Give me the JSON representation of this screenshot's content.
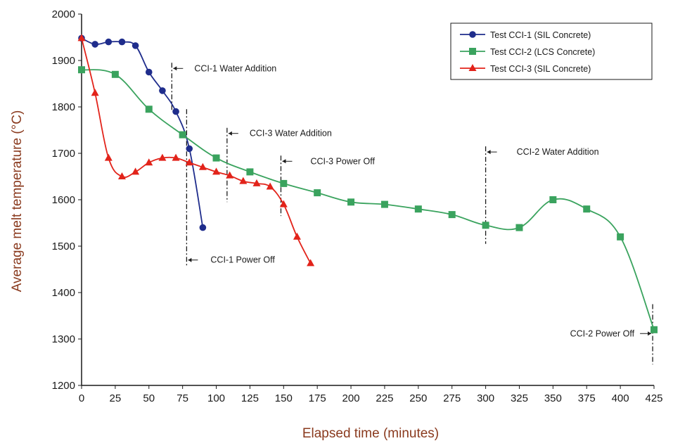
{
  "chart_data": {
    "type": "line",
    "xlabel": "Elapsed time (minutes)",
    "ylabel": "Average melt temperature (°C)",
    "xlim": [
      0,
      425
    ],
    "ylim": [
      1200,
      2000
    ],
    "xticks": [
      0,
      25,
      50,
      75,
      100,
      125,
      150,
      175,
      200,
      225,
      250,
      275,
      300,
      325,
      350,
      375,
      400,
      425
    ],
    "yticks": [
      1200,
      1300,
      1400,
      1500,
      1600,
      1700,
      1800,
      1900,
      2000
    ],
    "grid": false,
    "legend_position": "top-right",
    "series": [
      {
        "name": "Test CCI-1 (SIL Concrete)",
        "color": "#1f2d8c",
        "marker": "circle",
        "x": [
          0,
          10,
          20,
          30,
          40,
          50,
          60,
          70,
          80,
          90
        ],
        "y": [
          1948,
          1935,
          1940,
          1940,
          1932,
          1875,
          1835,
          1790,
          1710,
          1540
        ]
      },
      {
        "name": "Test CCI-2 (LCS Concrete)",
        "color": "#3aa35e",
        "marker": "square",
        "x": [
          0,
          25,
          50,
          75,
          100,
          125,
          150,
          175,
          200,
          225,
          250,
          275,
          300,
          325,
          350,
          375,
          400,
          425
        ],
        "y": [
          1880,
          1870,
          1795,
          1740,
          1690,
          1660,
          1635,
          1615,
          1595,
          1590,
          1580,
          1568,
          1545,
          1540,
          1600,
          1580,
          1520,
          1320
        ]
      },
      {
        "name": "Test CCI-3 (SIL Concrete)",
        "color": "#e2231a",
        "marker": "triangle",
        "x": [
          0,
          10,
          20,
          30,
          40,
          50,
          60,
          70,
          80,
          90,
          100,
          110,
          120,
          130,
          140,
          150,
          160,
          170
        ],
        "y": [
          1948,
          1830,
          1690,
          1650,
          1660,
          1680,
          1690,
          1690,
          1680,
          1670,
          1660,
          1652,
          1640,
          1635,
          1628,
          1590,
          1520,
          1463
        ]
      }
    ],
    "annotations": [
      {
        "text": "CCI-1 Water Addition",
        "x": 67,
        "y_range": [
          1790,
          1895
        ]
      },
      {
        "text": "CCI-1 Power Off",
        "x": 78,
        "y_range": [
          1455,
          1795
        ]
      },
      {
        "text": "CCI-3 Water Addition",
        "x": 108,
        "y_range": [
          1595,
          1755
        ]
      },
      {
        "text": "CCI-3 Power Off",
        "x": 148,
        "y_range": [
          1565,
          1695
        ]
      },
      {
        "text": "CCI-2 Water Addition",
        "x": 300,
        "y_range": [
          1505,
          1715
        ]
      },
      {
        "text": "CCI-2 Power Off",
        "x": 424,
        "y_range": [
          1245,
          1375
        ]
      }
    ]
  }
}
